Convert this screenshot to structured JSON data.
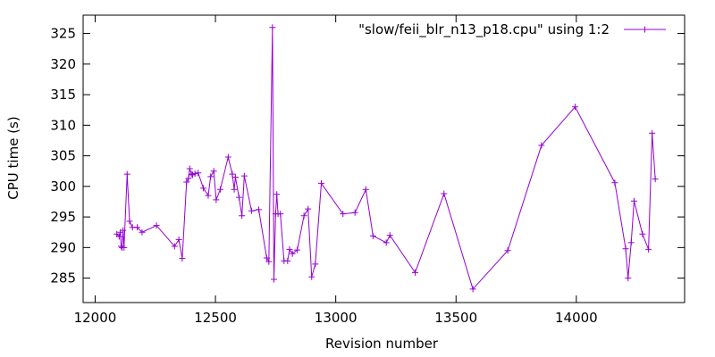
{
  "chart_data": {
    "type": "line",
    "title": "",
    "xlabel": "Revision number",
    "ylabel": "CPU time (s)",
    "xlim": [
      11950,
      14450
    ],
    "ylim": [
      281,
      328
    ],
    "xticks": [
      12000,
      12500,
      13000,
      13500,
      14000
    ],
    "yticks": [
      285,
      290,
      295,
      300,
      305,
      310,
      315,
      320,
      325
    ],
    "grid": false,
    "legend_position": "top-right",
    "series": [
      {
        "name": "\"slow/feii_blr_n13_p18.cpu\" using 1:2",
        "color": "#9400d3",
        "marker": "plus",
        "points": [
          [
            12090,
            292.2
          ],
          [
            12100,
            291.8
          ],
          [
            12105,
            292.5
          ],
          [
            12108,
            290.2
          ],
          [
            12112,
            290.0
          ],
          [
            12116,
            292.8
          ],
          [
            12120,
            290.0
          ],
          [
            12133,
            302.0
          ],
          [
            12143,
            294.3
          ],
          [
            12155,
            293.3
          ],
          [
            12175,
            293.3
          ],
          [
            12195,
            292.5
          ],
          [
            12255,
            293.6
          ],
          [
            12330,
            290.2
          ],
          [
            12348,
            291.3
          ],
          [
            12362,
            288.2
          ],
          [
            12380,
            300.7
          ],
          [
            12388,
            301.3
          ],
          [
            12393,
            302.9
          ],
          [
            12400,
            302.0
          ],
          [
            12405,
            301.9
          ],
          [
            12415,
            302.1
          ],
          [
            12428,
            302.2
          ],
          [
            12450,
            299.7
          ],
          [
            12470,
            298.5
          ],
          [
            12480,
            301.6
          ],
          [
            12493,
            302.5
          ],
          [
            12503,
            297.8
          ],
          [
            12520,
            299.5
          ],
          [
            12553,
            304.8
          ],
          [
            12570,
            302.0
          ],
          [
            12578,
            299.5
          ],
          [
            12583,
            301.5
          ],
          [
            12598,
            298.2
          ],
          [
            12610,
            295.2
          ],
          [
            12620,
            301.7
          ],
          [
            12650,
            296.0
          ],
          [
            12680,
            296.2
          ],
          [
            12713,
            288.3
          ],
          [
            12722,
            287.7
          ],
          [
            12737,
            326.0
          ],
          [
            12743,
            284.8
          ],
          [
            12750,
            295.5
          ],
          [
            12755,
            298.7
          ],
          [
            12760,
            295.5
          ],
          [
            12770,
            295.5
          ],
          [
            12785,
            287.8
          ],
          [
            12800,
            287.8
          ],
          [
            12808,
            289.7
          ],
          [
            12820,
            289.0
          ],
          [
            12840,
            289.6
          ],
          [
            12868,
            295.2
          ],
          [
            12885,
            296.3
          ],
          [
            12900,
            285.2
          ],
          [
            12915,
            287.3
          ],
          [
            12940,
            300.5
          ],
          [
            13030,
            295.5
          ],
          [
            13080,
            295.7
          ],
          [
            13125,
            299.5
          ],
          [
            13155,
            291.9
          ],
          [
            13210,
            290.8
          ],
          [
            13225,
            292.0
          ],
          [
            13330,
            285.9
          ],
          [
            13450,
            298.8
          ],
          [
            13570,
            283.2
          ],
          [
            13715,
            289.5
          ],
          [
            13855,
            306.7
          ],
          [
            13995,
            313.0
          ],
          [
            14160,
            300.6
          ],
          [
            14205,
            289.8
          ],
          [
            14215,
            285.0
          ],
          [
            14228,
            290.8
          ],
          [
            14240,
            297.6
          ],
          [
            14275,
            292.2
          ],
          [
            14300,
            289.7
          ],
          [
            14315,
            308.7
          ],
          [
            14328,
            301.2
          ]
        ]
      }
    ]
  }
}
